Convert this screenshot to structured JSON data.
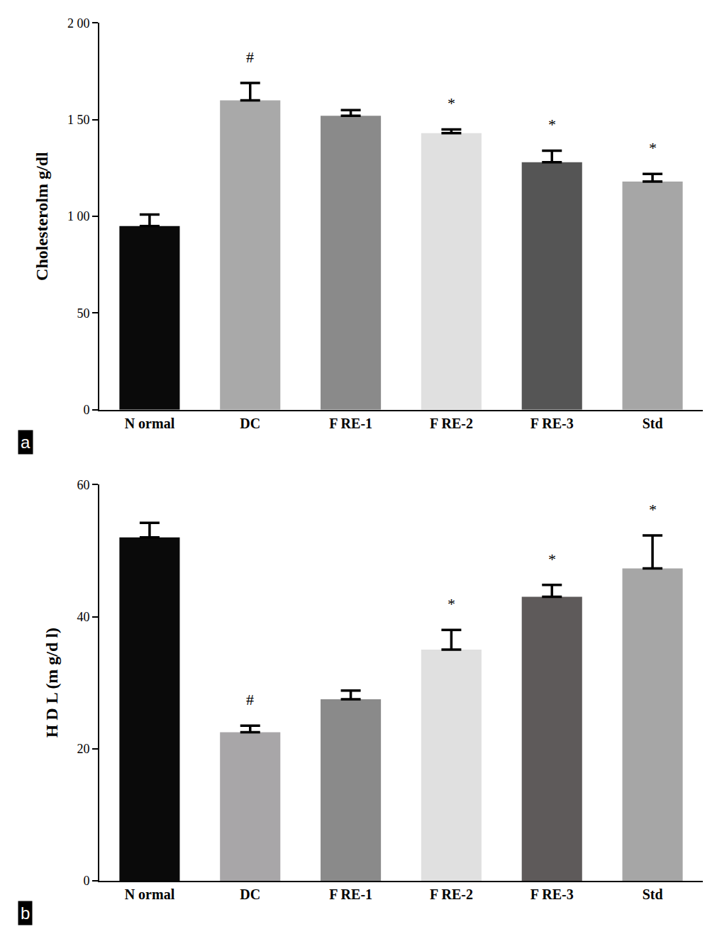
{
  "chart_data": [
    {
      "type": "bar",
      "label": "a",
      "y_label": "Cholesterolm g/dl",
      "categories": [
        "N ormal",
        "DC",
        "F RE-1",
        "F RE-2",
        "F RE-3",
        "Std"
      ],
      "values": [
        95,
        160,
        152,
        143,
        128,
        118
      ],
      "errors": [
        6,
        9,
        3,
        2,
        6,
        4
      ],
      "colors": [
        "#0a0a0a",
        "#a9a9a9",
        "#8a8a8a",
        "#e0e0e0",
        "#555555",
        "#a6a6a6"
      ],
      "ylim": [
        0,
        200
      ],
      "yticks": [
        0,
        50,
        {
          "value": 100,
          "label": "1 00"
        },
        {
          "value": 150,
          "label": "1 50"
        },
        {
          "value": 200,
          "label": "2 00"
        }
      ],
      "annotations": [
        {
          "category": "DC",
          "text": "#"
        },
        {
          "category": "F RE-2",
          "text": "*"
        },
        {
          "category": "F RE-3",
          "text": "*"
        },
        {
          "category": "Std",
          "text": "*"
        }
      ],
      "grid": false
    },
    {
      "type": "bar",
      "label": "b",
      "y_label": "H D L (m g/d l)",
      "categories": [
        "N ormal",
        "DC",
        "F RE-1",
        "F RE-2",
        "F RE-3",
        "Std"
      ],
      "values": [
        52,
        22.5,
        27.5,
        35,
        43,
        47.3
      ],
      "errors": [
        2.2,
        1,
        1.3,
        3,
        1.8,
        5
      ],
      "colors": [
        "#0a0a0a",
        "#a8a6a8",
        "#8a8a8a",
        "#e0e0e0",
        "#5e5a5a",
        "#a6a6a6"
      ],
      "ylim": [
        0,
        60
      ],
      "yticks": [
        0,
        20,
        40,
        60
      ],
      "annotations": [
        {
          "category": "DC",
          "text": "#"
        },
        {
          "category": "F RE-2",
          "text": "*"
        },
        {
          "category": "F RE-3",
          "text": "*"
        },
        {
          "category": "Std",
          "text": "*"
        }
      ],
      "grid": false
    }
  ]
}
